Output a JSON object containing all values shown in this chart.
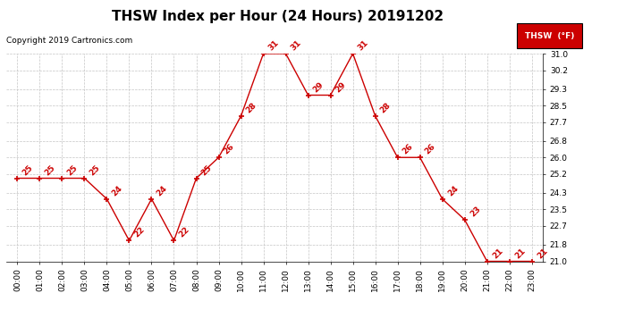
{
  "title": "THSW Index per Hour (24 Hours) 20191202",
  "copyright": "Copyright 2019 Cartronics.com",
  "legend_label": "THSW  (°F)",
  "hours": [
    0,
    1,
    2,
    3,
    4,
    5,
    6,
    7,
    8,
    9,
    10,
    11,
    12,
    13,
    14,
    15,
    16,
    17,
    18,
    19,
    20,
    21,
    22,
    23
  ],
  "values": [
    25,
    25,
    25,
    25,
    24,
    22,
    24,
    22,
    25,
    26,
    28,
    31,
    31,
    29,
    29,
    31,
    28,
    26,
    26,
    24,
    23,
    21,
    21,
    21
  ],
  "x_labels": [
    "00:00",
    "01:00",
    "02:00",
    "03:00",
    "04:00",
    "05:00",
    "06:00",
    "07:00",
    "08:00",
    "09:00",
    "10:00",
    "11:00",
    "12:00",
    "13:00",
    "14:00",
    "15:00",
    "16:00",
    "17:00",
    "18:00",
    "19:00",
    "20:00",
    "21:00",
    "22:00",
    "23:00"
  ],
  "y_ticks": [
    21.0,
    21.8,
    22.7,
    23.5,
    24.3,
    25.2,
    26.0,
    26.8,
    27.7,
    28.5,
    29.3,
    30.2,
    31.0
  ],
  "y_min": 21.0,
  "y_max": 31.0,
  "line_color": "#cc0000",
  "marker_color": "#cc0000",
  "label_color": "#cc0000",
  "background_color": "#ffffff",
  "grid_color": "#bbbbbb",
  "title_fontsize": 11,
  "copyright_fontsize": 6.5,
  "label_fontsize": 6.5,
  "tick_fontsize": 6.5,
  "legend_bg": "#cc0000",
  "legend_fg": "#ffffff"
}
